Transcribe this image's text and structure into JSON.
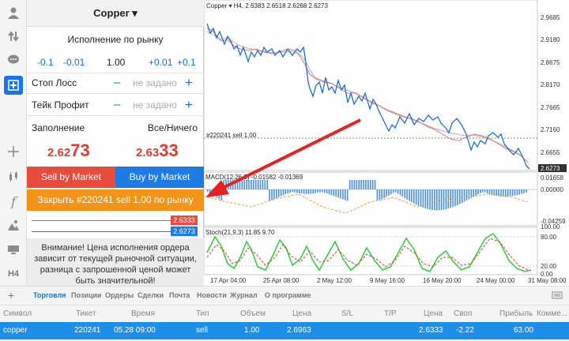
{
  "toolbar": {
    "items": [
      "user-icon",
      "transfer-icon",
      "chat-icon",
      "add-icon",
      "crosshair-icon",
      "candles-icon",
      "function-icon",
      "objects-icon",
      "layout-icon"
    ],
    "timeframe": "H4"
  },
  "order": {
    "symbol": "Copper ▾",
    "execution": "Исполнение по рынку",
    "volume_steps": {
      "minus_big": "-0.1",
      "minus_small": "-0.01",
      "plus_small": "+0.01",
      "plus_big": "+0.1"
    },
    "volume": "1.00",
    "stop_loss": {
      "label": "Стоп Лосс",
      "value": "не задано"
    },
    "take_profit": {
      "label": "Тейк Профит",
      "value": "не задано"
    },
    "minus": "–",
    "plus": "+",
    "filling": {
      "label": "Заполнение",
      "value": "Все/Ничего"
    },
    "bid": {
      "main": "2.62",
      "big": "73"
    },
    "ask": {
      "main": "2.63",
      "big": "33"
    },
    "sell_label": "Sell by Market",
    "buy_label": "Buy by Market",
    "close_label": "Закрыть #220241 sell 1.00 по рынку",
    "ask_tag": "2.6333",
    "bid_tag": "2.6273",
    "warning": "Внимание! Цена исполнения ордера зависит от текущей рыночной ситуации, разница с запрошенной ценой может быть значительной!"
  },
  "chart": {
    "header": "Copper ▾ H4, 2.6383 2.6518 2.6268 2.6273",
    "order_line_label": "#220241 sell 1.00",
    "price_axis": [
      "2.9685",
      "2.9180",
      "2.8675",
      "2.8170",
      "2.7665",
      "2.7160",
      "2.6655"
    ],
    "current_price": "2.6273",
    "macd_label": "MACD(12,26,9) -0.01582 -0.01369",
    "macd_axis": [
      "0.01658",
      "0.00000",
      "-0.04259"
    ],
    "stoch_label": "Stoch(21,9,3) 11.85 9.70",
    "stoch_axis": [
      "100.00",
      "80.00",
      "20.00",
      "0.00"
    ],
    "time_axis": [
      "17 Apr 04:00",
      "25 Apr 08:00",
      "2 May 12:00",
      "9 May 16:00",
      "16 May 20:00",
      "24 May 00:00",
      "31 May 08:00"
    ],
    "colors": {
      "price": "#1f6fd8",
      "ma_fast": "#e57373",
      "ma_slow": "#b0b0b0",
      "macd": "#4a90e2",
      "signal": "#e8a33d",
      "stoch_main": "#2ecc40",
      "stoch_signal": "#e53935",
      "arrow": "#e82020"
    }
  },
  "terminal": {
    "add": "+",
    "tabs": [
      "Торговля",
      "Позиции",
      "Ордеры",
      "Сделки",
      "Почта",
      "Новости",
      "Журнал",
      "О программе"
    ],
    "active_tab": "Торговля",
    "columns": [
      "Символ",
      "Тикет",
      "Время",
      "Тип",
      "Объем",
      "Цена",
      "S/L",
      "T/P",
      "Цена",
      "Своп",
      "Прибыль",
      "Комме..."
    ],
    "row": [
      "copper",
      "220241",
      "05.28 09:00",
      "sell",
      "1.00",
      "2.6963",
      "",
      "",
      "2.6333",
      "-2.22",
      "63.00",
      ""
    ]
  }
}
